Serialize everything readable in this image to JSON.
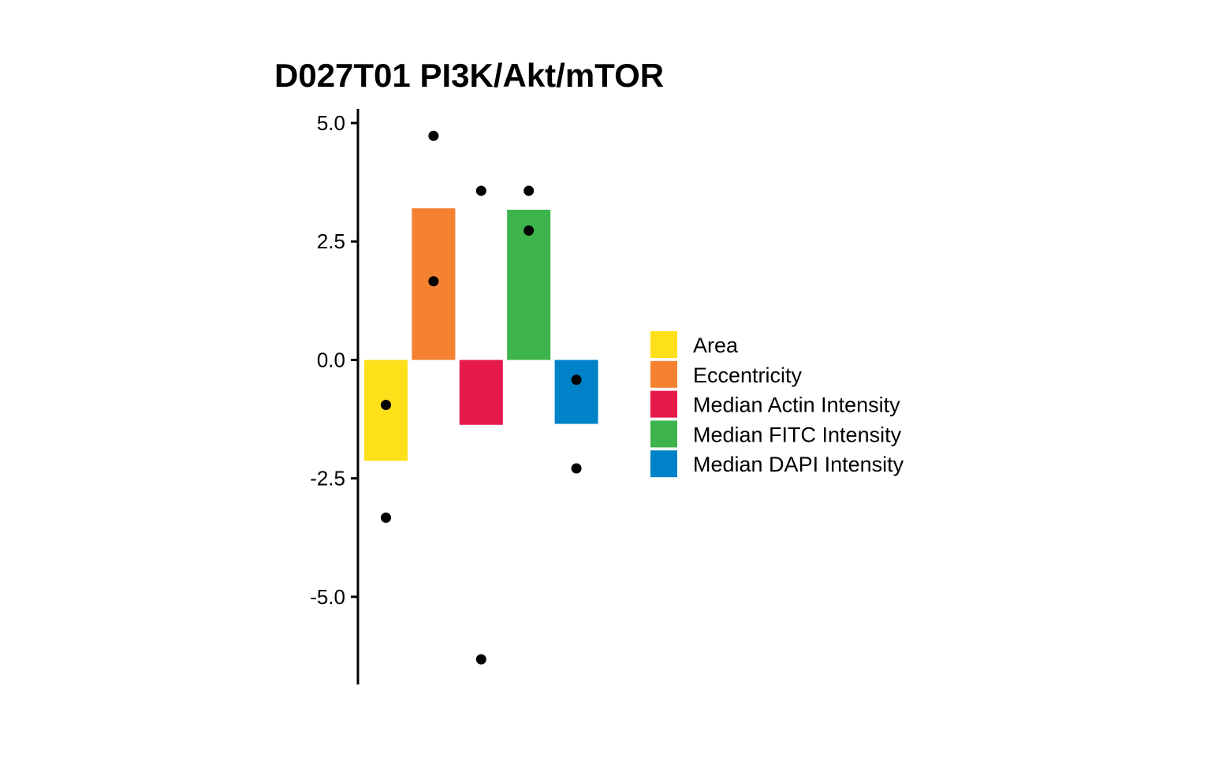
{
  "chart_data": {
    "type": "bar",
    "title": "D027T01 PI3K/Akt/mTOR",
    "xlabel": "",
    "ylabel": "",
    "ylim": [
      -6.85,
      5.3
    ],
    "yticks": [
      5.0,
      2.5,
      0.0,
      -2.5,
      -5.0
    ],
    "ytick_labels": [
      "5.0",
      "2.5",
      "0.0",
      "-2.5",
      "-5.0"
    ],
    "grid": false,
    "legend_position": "right",
    "categories": [
      "Area",
      "Eccentricity",
      "Median Actin Intensity",
      "Median FITC Intensity",
      "Median DAPI Intensity"
    ],
    "colors": [
      "#FDE01A",
      "#F58231",
      "#E6194B",
      "#3CB44B",
      "#0082C8"
    ],
    "values": [
      -2.13,
      3.2,
      -1.37,
      3.17,
      -1.35
    ],
    "points": [
      [
        -0.95,
        -3.33
      ],
      [
        1.66,
        4.73
      ],
      [
        3.57,
        -6.32
      ],
      [
        2.73,
        3.57
      ],
      [
        -0.42,
        -2.29
      ]
    ]
  }
}
